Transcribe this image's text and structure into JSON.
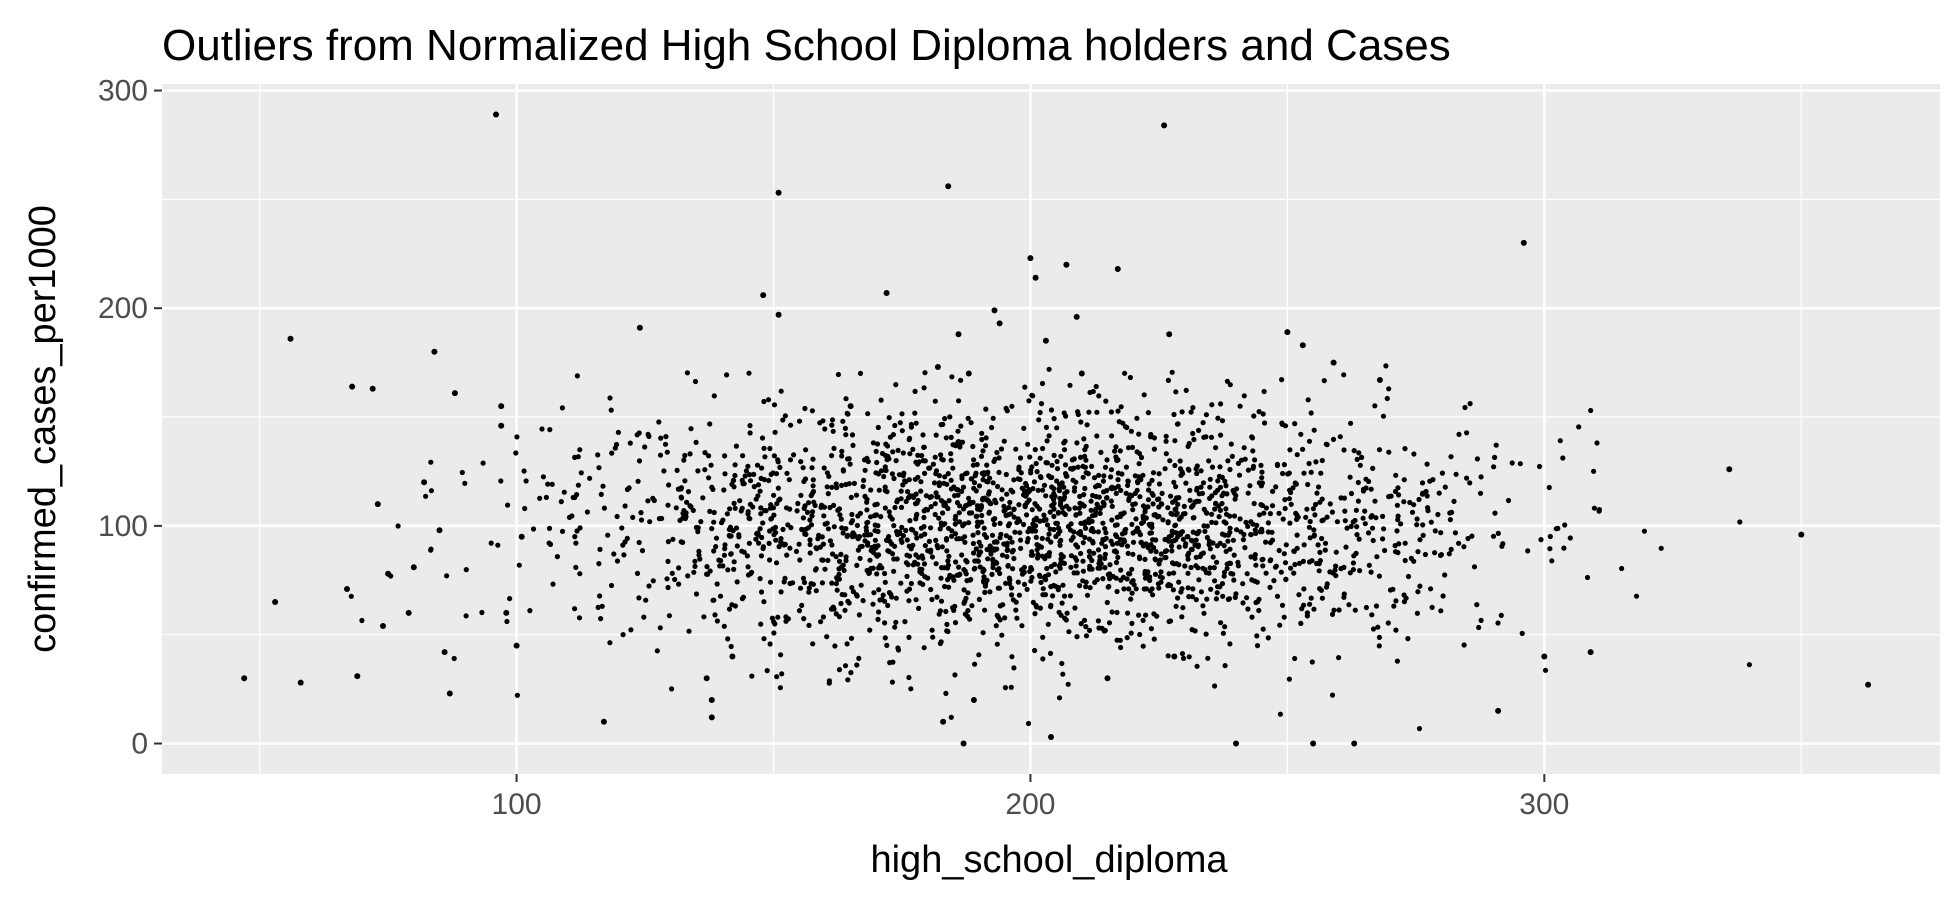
{
  "chart_data": {
    "type": "scatter",
    "title": "Outliers from Normalized High School  Diploma holders and Cases",
    "xlabel": "high_school_diploma",
    "ylabel": "confirmed_cases_per1000",
    "xlim": [
      31,
      377
    ],
    "ylim": [
      -14,
      303
    ],
    "x_ticks": [
      100,
      200,
      300
    ],
    "y_ticks": [
      0,
      100,
      200,
      300
    ],
    "x_tick_labels": [
      "100",
      "200",
      "300"
    ],
    "y_tick_labels": [
      "0",
      "100",
      "200",
      "300"
    ],
    "x_minor_ticks": [
      50,
      150,
      250,
      350
    ],
    "y_minor_ticks": [
      50,
      150,
      250
    ],
    "grid": true,
    "legend": "none",
    "colors": {
      "panel_background": "#ebebeb",
      "grid_line": "#ffffff",
      "point": "#000000",
      "tick_label": "#4d4d4d",
      "tick_mark": "#333333"
    },
    "points": {
      "x": [
        47,
        53,
        56,
        58,
        67,
        68,
        69,
        72,
        73,
        74,
        75,
        79,
        80,
        82,
        84,
        85,
        86,
        87,
        88,
        96,
        97,
        97,
        98,
        100,
        101,
        117,
        124,
        137,
        138,
        138,
        142,
        148,
        151,
        151,
        165,
        172,
        182,
        183,
        184,
        186,
        187,
        188,
        189,
        193,
        194,
        200,
        201,
        203,
        204,
        207,
        209,
        210,
        215,
        217,
        226,
        227,
        228,
        240,
        250,
        253,
        255,
        259,
        263,
        268,
        291,
        296,
        300,
        309,
        336,
        350,
        363
      ],
      "y": [
        30,
        65,
        186,
        28,
        71,
        164,
        31,
        163,
        110,
        54,
        78,
        60,
        81,
        120,
        180,
        98,
        42,
        23,
        161,
        289,
        155,
        146,
        60,
        45,
        95,
        10,
        191,
        30,
        20,
        12,
        40,
        206,
        197,
        253,
        155,
        207,
        173,
        10,
        256,
        188,
        0,
        170,
        20,
        199,
        193,
        223,
        214,
        185,
        3,
        220,
        196,
        170,
        30,
        218,
        284,
        188,
        40,
        0,
        189,
        183,
        0,
        175,
        0,
        167,
        15,
        230,
        40,
        42,
        126,
        96,
        27
      ]
    },
    "cloud": {
      "count": 2600,
      "x_center": 200,
      "x_spread": 44,
      "y_center": 100,
      "y_spread": 28,
      "x_range": [
        62,
        340
      ],
      "y_range": [
        6,
        176
      ]
    }
  }
}
